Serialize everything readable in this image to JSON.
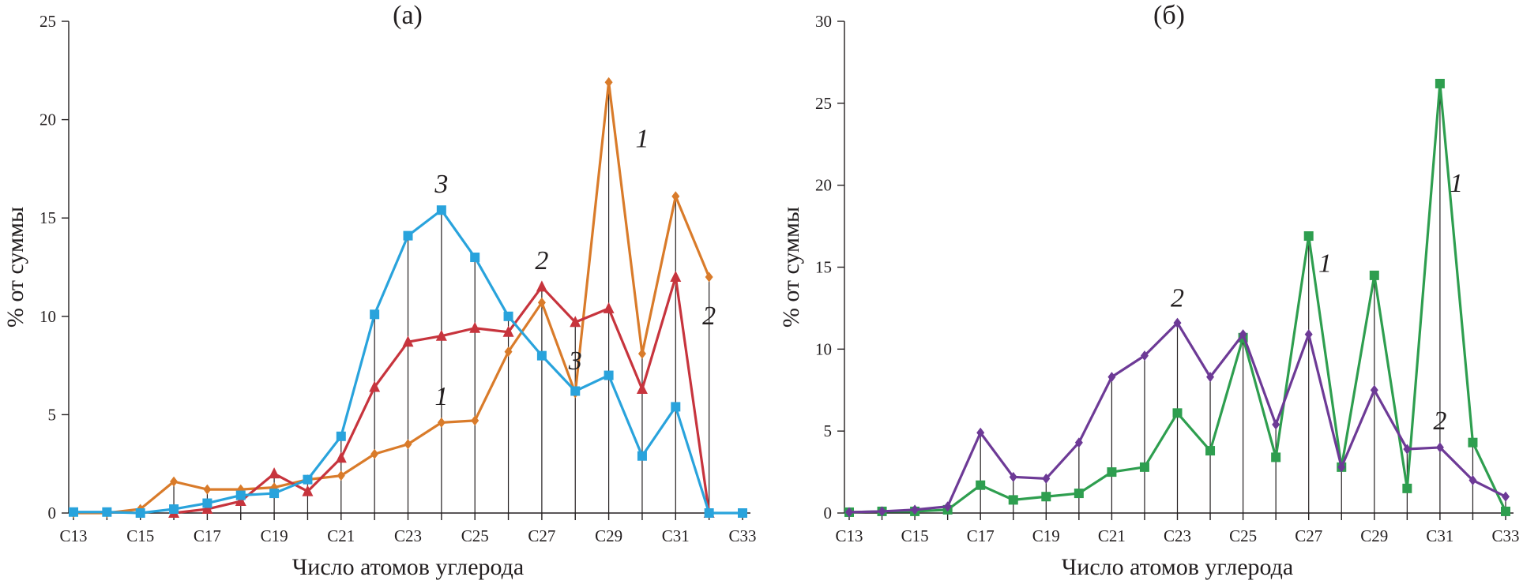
{
  "chart_data": [
    {
      "type": "line",
      "title": "(а)",
      "xlabel": "Число атомов углерода",
      "ylabel": "% от суммы",
      "ylim": [
        0,
        25
      ],
      "yticks": [
        "0",
        "5",
        "10",
        "15",
        "20",
        "25"
      ],
      "categories": [
        "C13",
        "C14",
        "C15",
        "C16",
        "C17",
        "C18",
        "C19",
        "C20",
        "C21",
        "C22",
        "C23",
        "C24",
        "C25",
        "C26",
        "C27",
        "C28",
        "C29",
        "C30",
        "C31",
        "C32",
        "C33"
      ],
      "xtick_labels": [
        "C13",
        "C15",
        "C17",
        "C19",
        "C21",
        "C23",
        "C25",
        "C27",
        "C29",
        "C31",
        "C33"
      ],
      "drop_lines": true,
      "series": [
        {
          "name": "1",
          "color": "#d97b2a",
          "marker": "diamond",
          "values": [
            0,
            0,
            0.2,
            1.6,
            1.2,
            1.2,
            1.3,
            1.7,
            1.9,
            3.0,
            3.5,
            4.6,
            4.7,
            8.2,
            10.7,
            6.1,
            21.9,
            8.1,
            16.1,
            12.0,
            null
          ]
        },
        {
          "name": "2",
          "color": "#c7343d",
          "marker": "triangle",
          "values": [
            null,
            null,
            null,
            0,
            0.2,
            0.6,
            2.0,
            1.1,
            2.8,
            6.4,
            8.7,
            9.0,
            9.4,
            9.2,
            11.5,
            9.7,
            10.4,
            6.3,
            12.0,
            0,
            null
          ]
        },
        {
          "name": "3",
          "color": "#29a3dc",
          "marker": "square",
          "values": [
            0.05,
            0.05,
            0,
            0.2,
            0.5,
            0.9,
            1.0,
            1.7,
            3.9,
            10.1,
            14.1,
            15.4,
            13.0,
            10.0,
            8.0,
            6.2,
            7.0,
            2.9,
            5.4,
            0,
            0
          ]
        }
      ],
      "annotations": [
        {
          "text": "1",
          "x": "C30",
          "y": 18.6
        },
        {
          "text": "3",
          "x": "C24",
          "y": 16.3
        },
        {
          "text": "2",
          "x": "C27",
          "y": 12.4
        },
        {
          "text": "3",
          "x": "C28",
          "y": 7.3
        },
        {
          "text": "1",
          "x": "C24",
          "y": 5.5
        },
        {
          "text": "2",
          "x": "C32",
          "y": 9.6
        }
      ]
    },
    {
      "type": "line",
      "title": "(б)",
      "xlabel": "Число атомов углерода",
      "ylabel": "% от суммы",
      "ylim": [
        0,
        30
      ],
      "yticks": [
        "0",
        "5",
        "10",
        "15",
        "20",
        "25",
        "30"
      ],
      "categories": [
        "C13",
        "C14",
        "C15",
        "C16",
        "C17",
        "C18",
        "C19",
        "C20",
        "C21",
        "C22",
        "C23",
        "C24",
        "C25",
        "C26",
        "C27",
        "C28",
        "C29",
        "C30",
        "C31",
        "C32",
        "C33"
      ],
      "xtick_labels": [
        "C13",
        "C15",
        "C17",
        "C19",
        "C21",
        "C23",
        "C25",
        "C27",
        "C29",
        "C31",
        "C33"
      ],
      "drop_lines": true,
      "series": [
        {
          "name": "1",
          "color": "#2e9e4f",
          "marker": "square",
          "values": [
            0.05,
            0.1,
            0.1,
            0.2,
            1.7,
            0.8,
            1.0,
            1.2,
            2.5,
            2.8,
            6.1,
            3.8,
            10.7,
            3.4,
            16.9,
            2.8,
            14.5,
            1.5,
            26.2,
            4.3,
            0.1
          ]
        },
        {
          "name": "2",
          "color": "#6d3a96",
          "marker": "diamond",
          "values": [
            0.05,
            0.1,
            0.2,
            0.4,
            4.9,
            2.2,
            2.1,
            4.3,
            8.3,
            9.6,
            11.6,
            8.3,
            10.9,
            5.4,
            10.9,
            2.8,
            7.5,
            3.9,
            4.0,
            2.0,
            1.0
          ]
        }
      ],
      "annotations": [
        {
          "text": "2",
          "x": "C23",
          "y": 12.6
        },
        {
          "text": "1",
          "x": "C27.5",
          "y": 14.7
        },
        {
          "text": "1",
          "x": "C31.5",
          "y": 19.6
        },
        {
          "text": "2",
          "x": "C31",
          "y": 5.1
        }
      ]
    }
  ]
}
